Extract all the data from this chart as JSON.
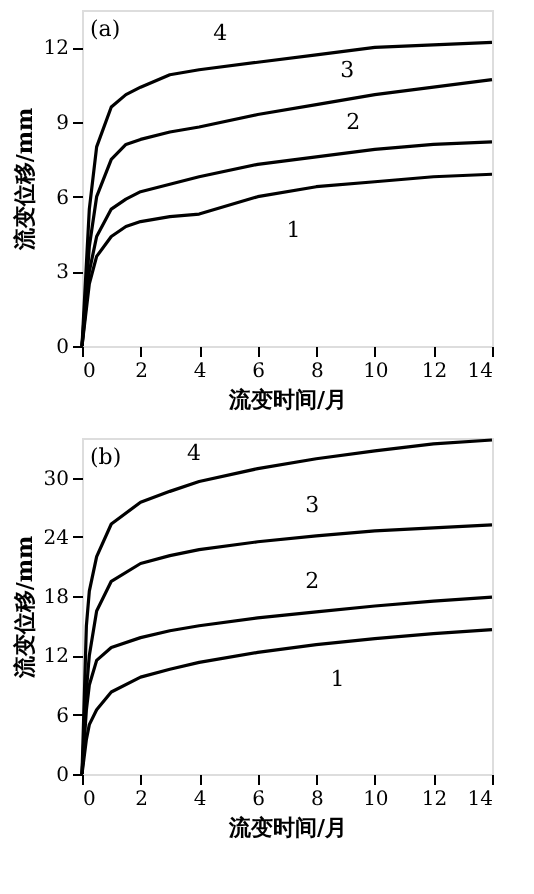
{
  "chart_data": [
    {
      "type": "line",
      "title": "(a)",
      "xlabel": "流变时间/月",
      "ylabel": "流变位移/mm",
      "xlim": [
        0,
        14
      ],
      "ylim": [
        0,
        13.5
      ],
      "xticks": [
        0,
        2,
        4,
        6,
        8,
        10,
        12,
        14
      ],
      "yticks": [
        0,
        3,
        6,
        9,
        12
      ],
      "grid": false,
      "legend": false,
      "marker": "none",
      "line_style": "solid",
      "x": [
        0,
        0.25,
        0.5,
        1,
        1.5,
        2,
        3,
        4,
        6,
        8,
        10,
        12,
        14
      ],
      "series": [
        {
          "color": "#000000",
          "values": [
            0,
            2.5,
            3.6,
            4.4,
            4.8,
            5.0,
            5.2,
            5.3,
            6.0,
            6.4,
            6.6,
            6.8,
            6.9
          ]
        },
        {
          "color": "#000000",
          "values": [
            0,
            3.0,
            4.4,
            5.5,
            5.9,
            6.2,
            6.5,
            6.8,
            7.3,
            7.6,
            7.9,
            8.1,
            8.2
          ]
        },
        {
          "color": "#000000",
          "values": [
            0,
            4.0,
            6.0,
            7.5,
            8.1,
            8.3,
            8.6,
            8.8,
            9.3,
            9.7,
            10.1,
            10.4,
            10.7
          ]
        },
        {
          "color": "#000000",
          "values": [
            0,
            5.5,
            8.0,
            9.6,
            10.1,
            10.4,
            10.9,
            11.1,
            11.4,
            11.7,
            12.0,
            12.1,
            12.2
          ]
        }
      ],
      "annotations": [
        {
          "text": "1",
          "x": 6.3,
          "y": 6.0
        },
        {
          "text": "2",
          "x": 8.2,
          "y": 7.6
        },
        {
          "text": "3",
          "x": 8,
          "y": 9.7
        },
        {
          "text": "4",
          "x": 3.8,
          "y": 11.0
        }
      ]
    },
    {
      "type": "line",
      "title": "(b)",
      "xlabel": "流变时间/月",
      "ylabel": "流变位移/mm",
      "xlim": [
        0,
        14
      ],
      "ylim": [
        0,
        34
      ],
      "xticks": [
        0,
        2,
        4,
        6,
        8,
        10,
        12,
        14
      ],
      "yticks": [
        0,
        6,
        12,
        18,
        24,
        30
      ],
      "grid": false,
      "legend": false,
      "marker": "none",
      "line_style": "solid",
      "x": [
        0,
        0.15,
        0.25,
        0.5,
        1,
        2,
        3,
        4,
        6,
        8,
        10,
        12,
        14
      ],
      "series": [
        {
          "color": "#000000",
          "values": [
            0,
            3.5,
            5,
            6.5,
            8.3,
            9.8,
            10.6,
            11.3,
            12.3,
            13.1,
            13.7,
            14.2,
            14.6
          ]
        },
        {
          "color": "#000000",
          "values": [
            0,
            6.5,
            9,
            11.5,
            12.8,
            13.8,
            14.5,
            15.0,
            15.8,
            16.4,
            17.0,
            17.5,
            17.9
          ]
        },
        {
          "color": "#000000",
          "values": [
            0,
            8.5,
            12,
            16.5,
            19.5,
            21.3,
            22.1,
            22.7,
            23.5,
            24.1,
            24.6,
            24.9,
            25.2
          ]
        },
        {
          "color": "#000000",
          "values": [
            0,
            15,
            18.5,
            22,
            25.3,
            27.5,
            28.6,
            29.6,
            30.9,
            31.9,
            32.7,
            33.4,
            33.8
          ]
        }
      ],
      "annotations": [
        {
          "text": "1",
          "x": 7.8,
          "y": 13.0
        },
        {
          "text": "2",
          "x": 6.8,
          "y": 16.0
        },
        {
          "text": "3",
          "x": 6.8,
          "y": 23.7
        },
        {
          "text": "4",
          "x": 2.9,
          "y": 28.5
        }
      ]
    }
  ]
}
